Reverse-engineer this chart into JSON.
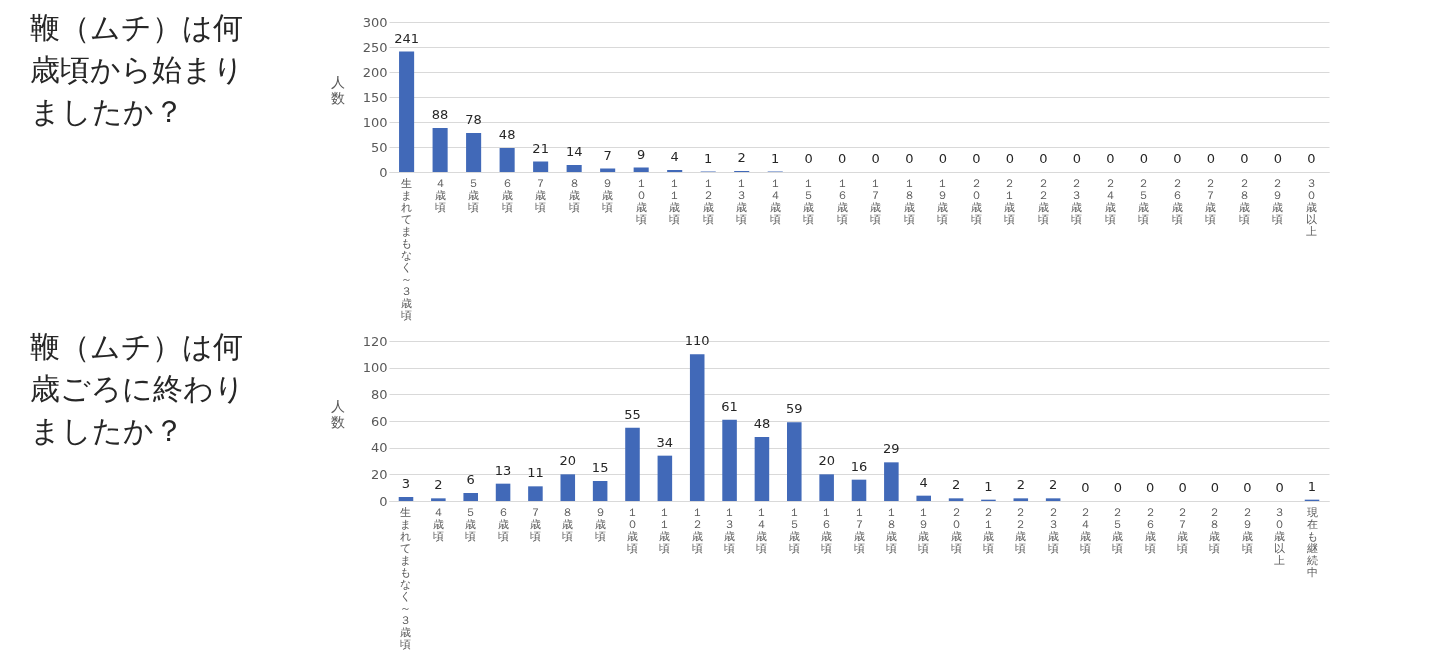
{
  "chart_data": [
    {
      "type": "bar",
      "title": "鞭（ムチ）は何歳頃から始まりましたか？",
      "ylabel": "人数",
      "color": "#4169b8",
      "grid": "y",
      "data_labels": true,
      "ylim": [
        0,
        300
      ],
      "yticks": [
        0,
        50,
        100,
        150,
        200,
        250,
        300
      ],
      "categories": [
        "生まれてまもなく～３歳頃",
        "４歳頃",
        "５歳頃",
        "６歳頃",
        "７歳頃",
        "８歳頃",
        "９歳頃",
        "１０歳頃",
        "１１歳頃",
        "１２歳頃",
        "１３歳頃",
        "１４歳頃",
        "１５歳頃",
        "１６歳頃",
        "１７歳頃",
        "１８歳頃",
        "１９歳頃",
        "２０歳頃",
        "２１歳頃",
        "２２歳頃",
        "２３歳頃",
        "２４歳頃",
        "２５歳頃",
        "２６歳頃",
        "２７歳頃",
        "２８歳頃",
        "２９歳頃",
        "３０歳以上"
      ],
      "values": [
        241,
        88,
        78,
        48,
        21,
        14,
        7,
        9,
        4,
        1,
        2,
        1,
        0,
        0,
        0,
        0,
        0,
        0,
        0,
        0,
        0,
        0,
        0,
        0,
        0,
        0,
        0,
        0
      ]
    },
    {
      "type": "bar",
      "title": "鞭（ムチ）は何歳ごろに終わりましたか？",
      "ylabel": "人数",
      "color": "#4169b8",
      "grid": "y",
      "data_labels": true,
      "ylim": [
        0,
        120
      ],
      "yticks": [
        0,
        20,
        40,
        60,
        80,
        100,
        120
      ],
      "categories": [
        "生まれてまもなく～３歳頃",
        "４歳頃",
        "５歳頃",
        "６歳頃",
        "７歳頃",
        "８歳頃",
        "９歳頃",
        "１０歳頃",
        "１１歳頃",
        "１２歳頃",
        "１３歳頃",
        "１４歳頃",
        "１５歳頃",
        "１６歳頃",
        "１７歳頃",
        "１８歳頃",
        "１９歳頃",
        "２０歳頃",
        "２１歳頃",
        "２２歳頃",
        "２３歳頃",
        "２４歳頃",
        "２５歳頃",
        "２６歳頃",
        "２７歳頃",
        "２８歳頃",
        "２９歳頃",
        "３０歳以上",
        "現在も継続中"
      ],
      "values": [
        3,
        2,
        6,
        13,
        11,
        20,
        15,
        55,
        34,
        110,
        61,
        48,
        59,
        20,
        16,
        29,
        4,
        2,
        1,
        2,
        2,
        0,
        0,
        0,
        0,
        0,
        0,
        0,
        1
      ]
    }
  ]
}
